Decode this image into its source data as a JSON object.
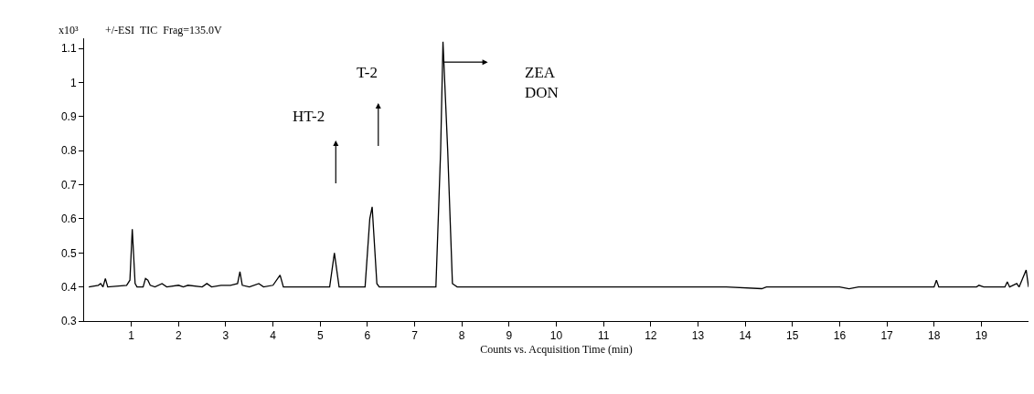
{
  "chart_data": {
    "type": "line",
    "title": "+/-ESI  TIC  Frag=135.0V",
    "ylabel": "x10³",
    "xlabel": "Counts vs. Acquisition Time (min)",
    "x": [
      0.1,
      0.3,
      0.35,
      0.4,
      0.45,
      0.5,
      0.9,
      0.97,
      1.02,
      1.08,
      1.12,
      1.25,
      1.3,
      1.35,
      1.4,
      1.5,
      1.65,
      1.75,
      2.0,
      2.1,
      2.2,
      2.5,
      2.6,
      2.7,
      2.9,
      3.1,
      3.25,
      3.3,
      3.35,
      3.5,
      3.7,
      3.8,
      4.0,
      4.15,
      4.22,
      5.2,
      5.3,
      5.4,
      5.95,
      6.05,
      6.1,
      6.2,
      6.25,
      7.45,
      7.55,
      7.6,
      7.7,
      7.8,
      7.9,
      13.6,
      14.35,
      14.45,
      16.0,
      16.2,
      16.4,
      18.0,
      18.05,
      18.1,
      18.9,
      18.95,
      19.05,
      19.5,
      19.55,
      19.6,
      19.75,
      19.8,
      19.95,
      20
    ],
    "series": [
      {
        "color": "#000000",
        "values": [
          0.4,
          0.405,
          0.41,
          0.4,
          0.425,
          0.4,
          0.405,
          0.42,
          0.57,
          0.41,
          0.4,
          0.4,
          0.425,
          0.42,
          0.405,
          0.4,
          0.41,
          0.4,
          0.405,
          0.4,
          0.405,
          0.4,
          0.41,
          0.4,
          0.405,
          0.405,
          0.41,
          0.445,
          0.405,
          0.4,
          0.41,
          0.4,
          0.405,
          0.435,
          0.4,
          0.4,
          0.5,
          0.4,
          0.4,
          0.6,
          0.635,
          0.41,
          0.4,
          0.4,
          0.8,
          1.12,
          0.8,
          0.41,
          0.4,
          0.4,
          0.395,
          0.4,
          0.4,
          0.395,
          0.4,
          0.4,
          0.42,
          0.4,
          0.4,
          0.405,
          0.4,
          0.4,
          0.415,
          0.4,
          0.41,
          0.4,
          0.45,
          0.4
        ]
      }
    ],
    "annotations": [
      "HT-2",
      "T-2",
      "ZEA\nDON"
    ],
    "xlim": [
      0,
      20
    ],
    "xticks": [
      1,
      2,
      3,
      4,
      5,
      6,
      7,
      8,
      9,
      10,
      11,
      12,
      13,
      14,
      15,
      16,
      17,
      18,
      19
    ],
    "ylim": [
      0.3,
      1.13
    ],
    "yticks": [
      0.3,
      0.4,
      0.5,
      0.6,
      0.7,
      0.8,
      0.9,
      1,
      1.1
    ],
    "marker": "none",
    "line_style": "solid"
  }
}
